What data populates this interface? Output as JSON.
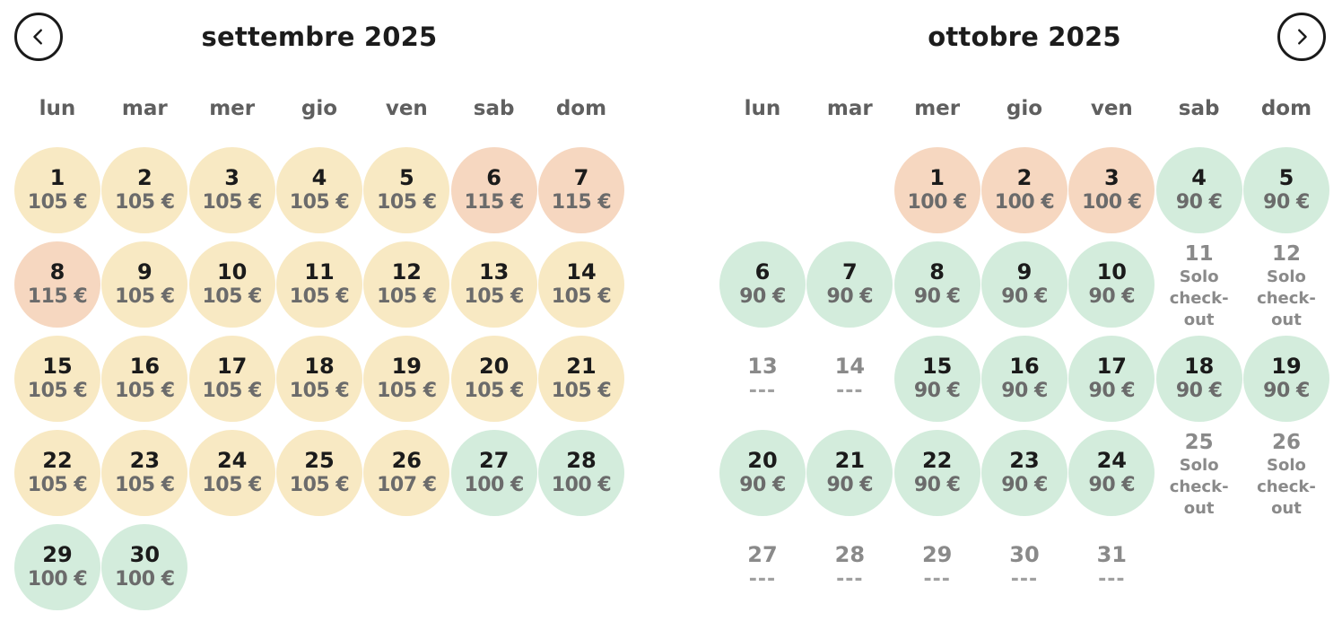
{
  "nav": {
    "prev_icon": "chevron-left-icon",
    "next_icon": "chevron-right-icon"
  },
  "colors": {
    "yellow": "#f8e9c3",
    "orange": "#f6d7c0",
    "green": "#d3ecdc"
  },
  "months": [
    {
      "title": "settembre 2025",
      "weekdays": [
        "lun",
        "mar",
        "mer",
        "gio",
        "ven",
        "sab",
        "dom"
      ],
      "start_offset": 0,
      "days": [
        {
          "n": "1",
          "p": "105 €",
          "c": "yellow"
        },
        {
          "n": "2",
          "p": "105 €",
          "c": "yellow"
        },
        {
          "n": "3",
          "p": "105 €",
          "c": "yellow"
        },
        {
          "n": "4",
          "p": "105 €",
          "c": "yellow"
        },
        {
          "n": "5",
          "p": "105 €",
          "c": "yellow"
        },
        {
          "n": "6",
          "p": "115 €",
          "c": "orange"
        },
        {
          "n": "7",
          "p": "115 €",
          "c": "orange"
        },
        {
          "n": "8",
          "p": "115 €",
          "c": "orange"
        },
        {
          "n": "9",
          "p": "105 €",
          "c": "yellow"
        },
        {
          "n": "10",
          "p": "105 €",
          "c": "yellow"
        },
        {
          "n": "11",
          "p": "105 €",
          "c": "yellow"
        },
        {
          "n": "12",
          "p": "105 €",
          "c": "yellow"
        },
        {
          "n": "13",
          "p": "105 €",
          "c": "yellow"
        },
        {
          "n": "14",
          "p": "105 €",
          "c": "yellow"
        },
        {
          "n": "15",
          "p": "105 €",
          "c": "yellow"
        },
        {
          "n": "16",
          "p": "105 €",
          "c": "yellow"
        },
        {
          "n": "17",
          "p": "105 €",
          "c": "yellow"
        },
        {
          "n": "18",
          "p": "105 €",
          "c": "yellow"
        },
        {
          "n": "19",
          "p": "105 €",
          "c": "yellow"
        },
        {
          "n": "20",
          "p": "105 €",
          "c": "yellow"
        },
        {
          "n": "21",
          "p": "105 €",
          "c": "yellow"
        },
        {
          "n": "22",
          "p": "105 €",
          "c": "yellow"
        },
        {
          "n": "23",
          "p": "105 €",
          "c": "yellow"
        },
        {
          "n": "24",
          "p": "105 €",
          "c": "yellow"
        },
        {
          "n": "25",
          "p": "105 €",
          "c": "yellow"
        },
        {
          "n": "26",
          "p": "107 €",
          "c": "yellow"
        },
        {
          "n": "27",
          "p": "100 €",
          "c": "green"
        },
        {
          "n": "28",
          "p": "100 €",
          "c": "green"
        },
        {
          "n": "29",
          "p": "100 €",
          "c": "green"
        },
        {
          "n": "30",
          "p": "100 €",
          "c": "green"
        }
      ]
    },
    {
      "title": "ottobre 2025",
      "weekdays": [
        "lun",
        "mar",
        "mer",
        "gio",
        "ven",
        "sab",
        "dom"
      ],
      "start_offset": 2,
      "days": [
        {
          "n": "1",
          "p": "100 €",
          "c": "orange"
        },
        {
          "n": "2",
          "p": "100 €",
          "c": "orange"
        },
        {
          "n": "3",
          "p": "100 €",
          "c": "orange"
        },
        {
          "n": "4",
          "p": "90 €",
          "c": "green"
        },
        {
          "n": "5",
          "p": "90 €",
          "c": "green"
        },
        {
          "n": "6",
          "p": "90 €",
          "c": "green"
        },
        {
          "n": "7",
          "p": "90 €",
          "c": "green"
        },
        {
          "n": "8",
          "p": "90 €",
          "c": "green"
        },
        {
          "n": "9",
          "p": "90 €",
          "c": "green"
        },
        {
          "n": "10",
          "p": "90 €",
          "c": "green"
        },
        {
          "n": "11",
          "p": "Solo\ncheck-\nout",
          "c": "checkout"
        },
        {
          "n": "12",
          "p": "Solo\ncheck-\nout",
          "c": "checkout"
        },
        {
          "n": "13",
          "p": "---",
          "c": "off"
        },
        {
          "n": "14",
          "p": "---",
          "c": "off"
        },
        {
          "n": "15",
          "p": "90 €",
          "c": "green"
        },
        {
          "n": "16",
          "p": "90 €",
          "c": "green"
        },
        {
          "n": "17",
          "p": "90 €",
          "c": "green"
        },
        {
          "n": "18",
          "p": "90 €",
          "c": "green"
        },
        {
          "n": "19",
          "p": "90 €",
          "c": "green"
        },
        {
          "n": "20",
          "p": "90 €",
          "c": "green"
        },
        {
          "n": "21",
          "p": "90 €",
          "c": "green"
        },
        {
          "n": "22",
          "p": "90 €",
          "c": "green"
        },
        {
          "n": "23",
          "p": "90 €",
          "c": "green"
        },
        {
          "n": "24",
          "p": "90 €",
          "c": "green"
        },
        {
          "n": "25",
          "p": "Solo\ncheck-\nout",
          "c": "checkout"
        },
        {
          "n": "26",
          "p": "Solo\ncheck-\nout",
          "c": "checkout"
        },
        {
          "n": "27",
          "p": "---",
          "c": "off"
        },
        {
          "n": "28",
          "p": "---",
          "c": "off"
        },
        {
          "n": "29",
          "p": "---",
          "c": "off"
        },
        {
          "n": "30",
          "p": "---",
          "c": "off"
        },
        {
          "n": "31",
          "p": "---",
          "c": "off"
        }
      ]
    }
  ]
}
